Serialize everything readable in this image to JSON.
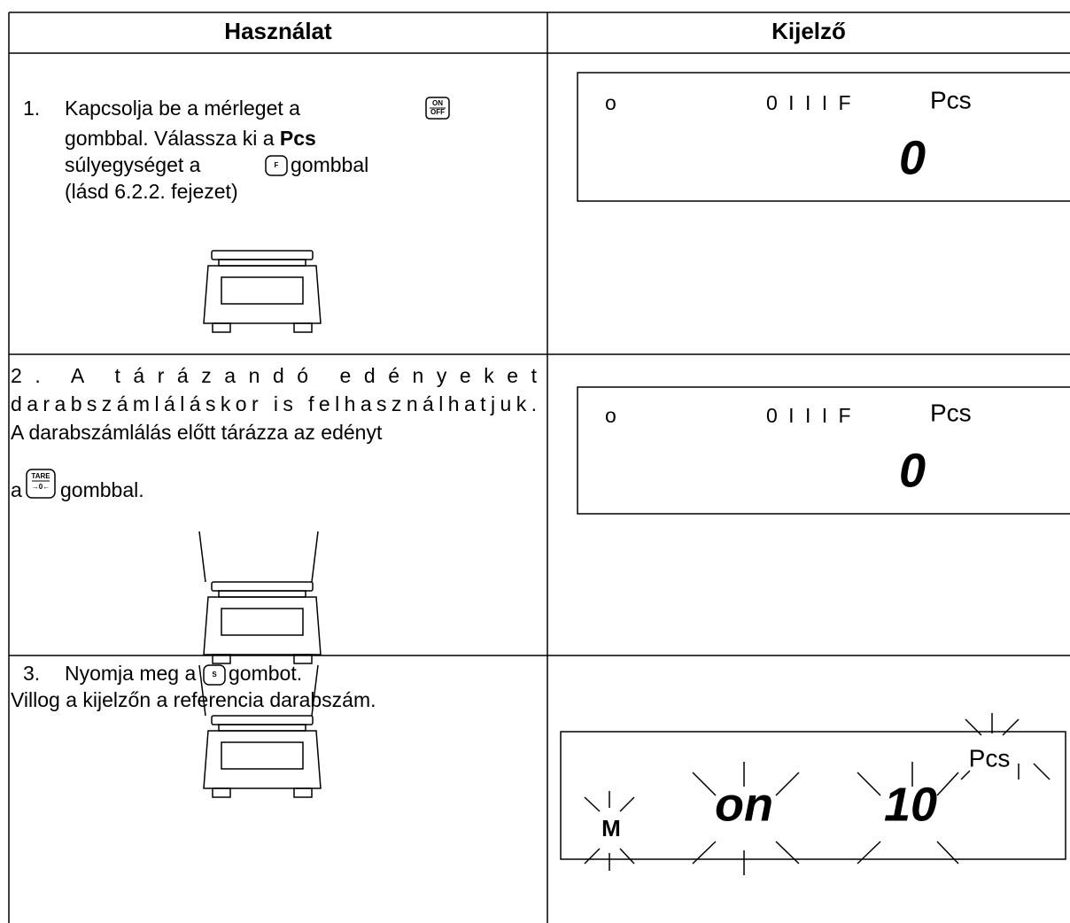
{
  "table": {
    "header": [
      "Használat",
      "Kijelző"
    ],
    "rows": [
      {
        "instruction": {
          "step": "1.",
          "line1": "Kapcsolja be a mérleget a",
          "key1": [
            "ON",
            "OFF"
          ],
          "line2a": "gombbal. Válassza ki a",
          "line2b": "Pcs",
          "line3a": "súlyegységet a",
          "key2": "F",
          "line3b": "gombbal",
          "line4": "(lásd 6.2.2. fejezet)"
        },
        "display": {
          "indicator": "o",
          "segments": "0 I I I F",
          "unit": "Pcs",
          "value": "0"
        }
      },
      {
        "instruction": {
          "line1": "2. A tárázandó edényeket",
          "line2": "darabszámláláskor is felhasználhatjuk.",
          "line3": "A darabszámlálás előtt tárázza az edényt",
          "line4a": "a",
          "key": [
            "TARE",
            "→0←"
          ],
          "line4b": "gombbal."
        },
        "display": {
          "indicator": "o",
          "segments": "0 I I I F",
          "unit": "Pcs",
          "value": "0"
        }
      },
      {
        "instruction": {
          "step": "3.",
          "line1a": "Nyomja meg a",
          "key": "S",
          "line1b": "gombot.",
          "line2": "Villog a kijelzőn a referencia darabszám."
        },
        "display": {
          "memory": "M",
          "mode": "on",
          "value": "10",
          "unit": "Pcs"
        }
      }
    ]
  }
}
